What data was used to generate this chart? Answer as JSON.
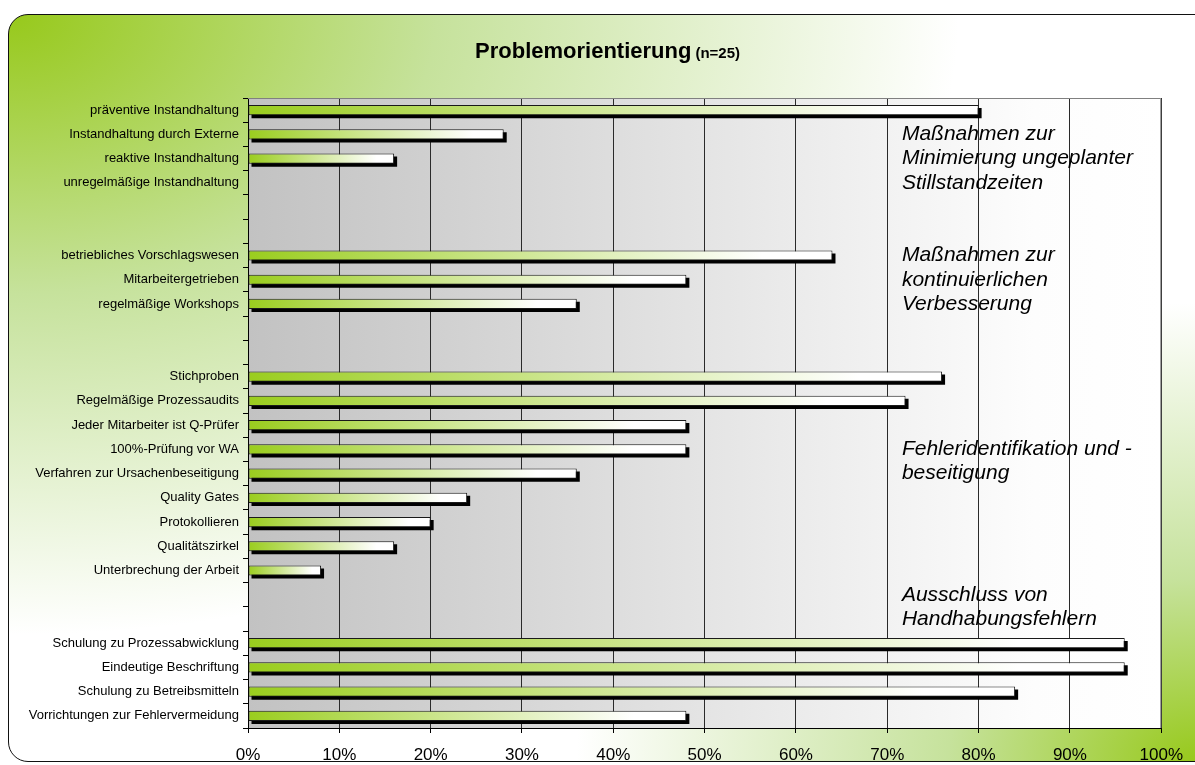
{
  "chart_data": {
    "type": "bar",
    "orientation": "horizontal",
    "title": "Problemorientierung",
    "subtitle": "(n=25)",
    "categories": [
      "präventive Instandhaltung",
      "Instandhaltung durch Externe",
      "reaktive Instandhaltung",
      "unregelmäßige Instandhaltung",
      null,
      null,
      "betriebliches Vorschlagswesen",
      "Mitarbeitergetrieben",
      "regelmäßige Workshops",
      null,
      null,
      "Stichproben",
      "Regelmäßige Prozessaudits",
      "Jeder Mitarbeiter ist Q-Prüfer",
      "100%-Prüfung vor WA",
      "Verfahren zur Ursachenbeseitigung",
      "Quality Gates",
      "Protokollieren",
      "Qualitätszirkel",
      "Unterbrechung der Arbeit",
      null,
      null,
      "Schulung zu Prozessabwicklung",
      "Eindeutige Beschriftung",
      "Schulung zu Betreibsmitteln",
      "Vorrichtungen zur Fehlervermeidung"
    ],
    "values": [
      80,
      28,
      16,
      0,
      null,
      null,
      64,
      48,
      36,
      null,
      null,
      76,
      72,
      48,
      48,
      36,
      24,
      20,
      16,
      8,
      null,
      null,
      96,
      96,
      84,
      48
    ],
    "color": "#9acd1e",
    "xlim": [
      0,
      100
    ],
    "xticks": [
      {
        "value": 0,
        "label": "0%"
      },
      {
        "value": 10,
        "label": "10%"
      },
      {
        "value": 20,
        "label": "20%"
      },
      {
        "value": 30,
        "label": "30%"
      },
      {
        "value": 40,
        "label": "40%"
      },
      {
        "value": 50,
        "label": "50%"
      },
      {
        "value": 60,
        "label": "60%"
      },
      {
        "value": 70,
        "label": "70%"
      },
      {
        "value": 80,
        "label": "80%"
      },
      {
        "value": 90,
        "label": "90%"
      },
      {
        "value": 100,
        "label": "100%"
      }
    ],
    "grid": "x",
    "annotations": [
      "Maßnahmen zur Minimierung ungeplanter Stillstandzeiten",
      "Maßnahmen zur kontinuierlichen Verbesserung",
      "Fehleridentifikation und - beseitigung",
      "Ausschluss von Handhabungsfehlern"
    ]
  }
}
